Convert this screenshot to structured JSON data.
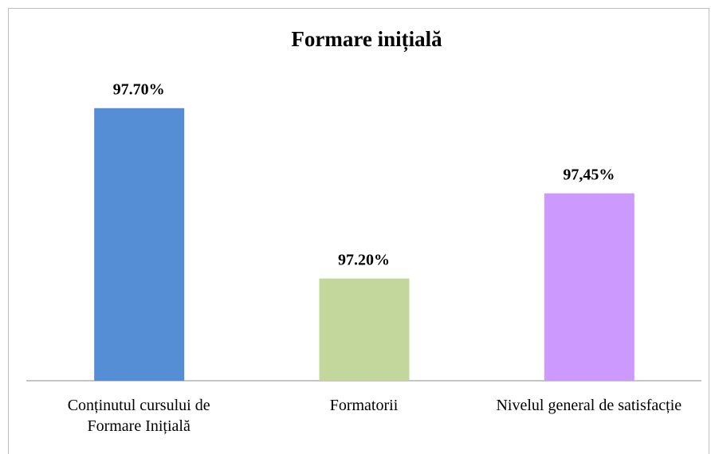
{
  "chart_data": {
    "type": "bar",
    "title": "Formare inițială",
    "categories": [
      "Conținutul cursului de Formare Inițială",
      "Formatorii",
      "Nivelul general de satisfacție"
    ],
    "values": [
      97.7,
      97.2,
      97.45
    ],
    "value_labels": [
      "97.70%",
      "97.20%",
      "97,45%"
    ],
    "colors": [
      "#558ed5",
      "#c3d69b",
      "#cc99ff"
    ],
    "ylim": [
      96.9,
      97.8
    ]
  }
}
